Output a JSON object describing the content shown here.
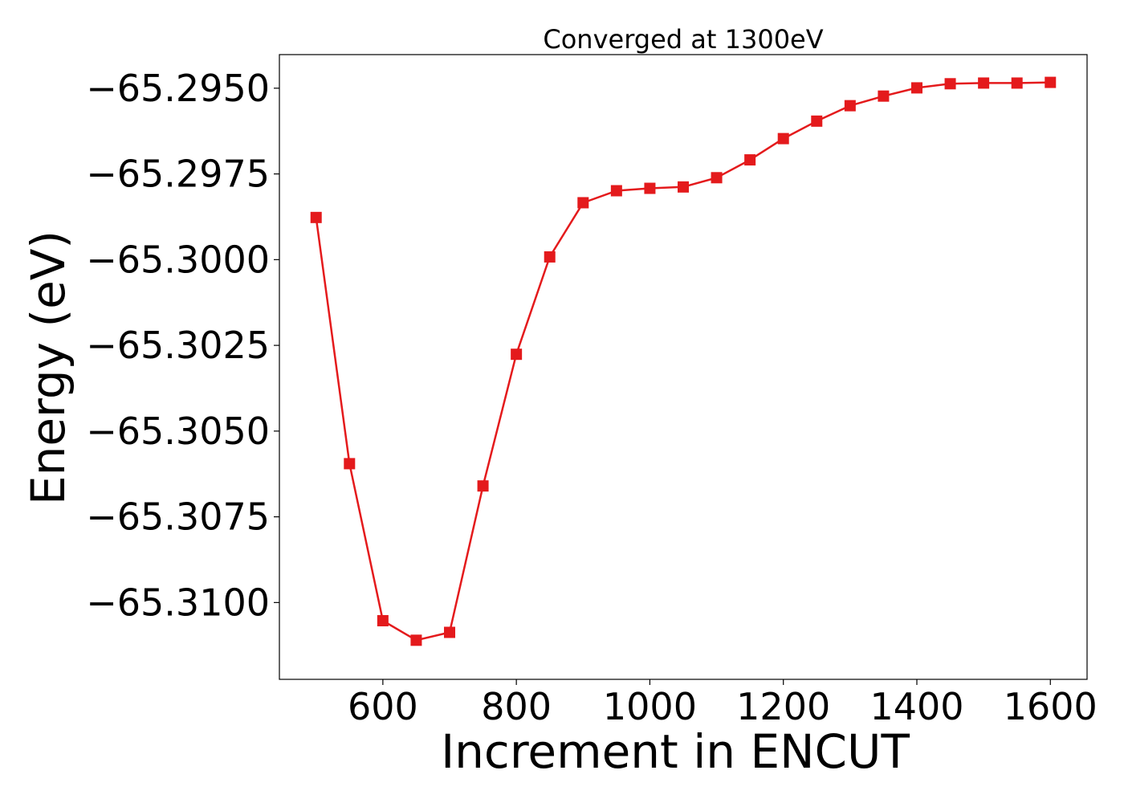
{
  "chart_data": {
    "type": "line",
    "title": "Converged at 1300eV",
    "xlabel": "Increment in ENCUT",
    "ylabel": "Energy (eV)",
    "xlim": [
      445,
      1655
    ],
    "ylim": [
      -65.31224,
      -65.29402
    ],
    "xticks": [
      600,
      800,
      1000,
      1200,
      1400,
      1600
    ],
    "xtick_labels": [
      "600",
      "800",
      "1000",
      "1200",
      "1400",
      "1600"
    ],
    "yticks": [
      -65.31,
      -65.3075,
      -65.305,
      -65.3025,
      -65.3,
      -65.2975,
      -65.295
    ],
    "ytick_labels": [
      "−65.3100",
      "−65.3075",
      "−65.3050",
      "−65.3025",
      "−65.3000",
      "−65.2975",
      "−65.2950"
    ],
    "grid": false,
    "series": [
      {
        "color": "#e41a1c",
        "marker": "square",
        "x": [
          500,
          550,
          600,
          650,
          700,
          750,
          800,
          850,
          900,
          950,
          1000,
          1050,
          1100,
          1150,
          1200,
          1250,
          1300,
          1350,
          1400,
          1450,
          1500,
          1550,
          1600
        ],
        "y": [
          -65.29877,
          -65.30595,
          -65.31053,
          -65.3111,
          -65.31087,
          -65.3066,
          -65.30276,
          -65.29992,
          -65.29834,
          -65.29799,
          -65.29792,
          -65.29788,
          -65.29761,
          -65.29709,
          -65.29647,
          -65.29596,
          -65.29551,
          -65.29523,
          -65.29499,
          -65.29487,
          -65.29485,
          -65.29485,
          -65.29483
        ]
      }
    ]
  }
}
